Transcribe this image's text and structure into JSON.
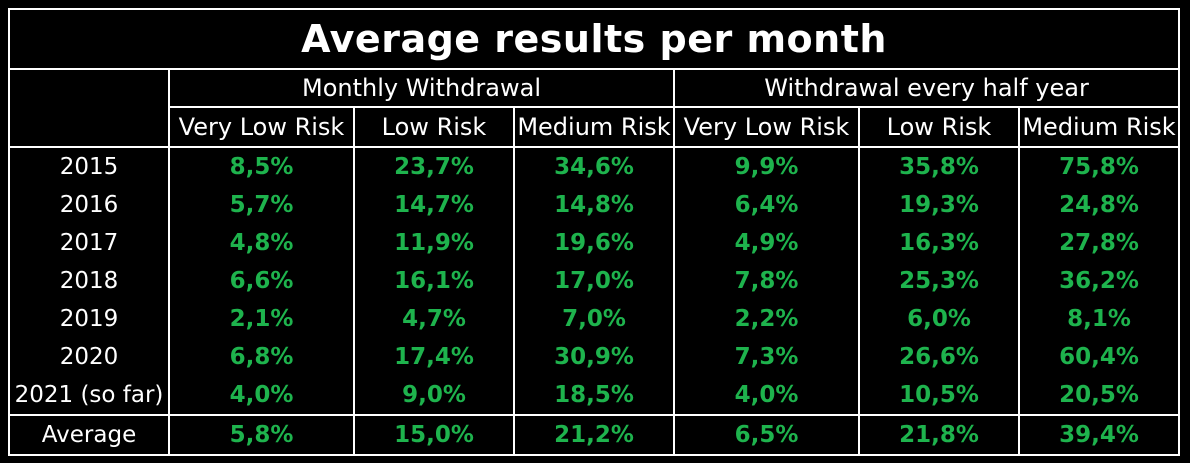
{
  "title": "Average results per month",
  "groups": [
    "Monthly Withdrawal",
    "Withdrawal every half year"
  ],
  "columns": [
    "Very Low Risk",
    "Low Risk",
    "Medium Risk",
    "Very Low Risk",
    "Low Risk",
    "Medium Risk"
  ],
  "rows": [
    {
      "label": "2015",
      "values": [
        "8,5%",
        "23,7%",
        "34,6%",
        "9,9%",
        "35,8%",
        "75,8%"
      ]
    },
    {
      "label": "2016",
      "values": [
        "5,7%",
        "14,7%",
        "14,8%",
        "6,4%",
        "19,3%",
        "24,8%"
      ]
    },
    {
      "label": "2017",
      "values": [
        "4,8%",
        "11,9%",
        "19,6%",
        "4,9%",
        "16,3%",
        "27,8%"
      ]
    },
    {
      "label": "2018",
      "values": [
        "6,6%",
        "16,1%",
        "17,0%",
        "7,8%",
        "25,3%",
        "36,2%"
      ]
    },
    {
      "label": "2019",
      "values": [
        "2,1%",
        "4,7%",
        "7,0%",
        "2,2%",
        "6,0%",
        "8,1%"
      ]
    },
    {
      "label": "2020",
      "values": [
        "6,8%",
        "17,4%",
        "30,9%",
        "7,3%",
        "26,6%",
        "60,4%"
      ]
    },
    {
      "label": "2021 (so far)",
      "values": [
        "4,0%",
        "9,0%",
        "18,5%",
        "4,0%",
        "10,5%",
        "20,5%"
      ]
    }
  ],
  "average": {
    "label": "Average",
    "values": [
      "5,8%",
      "15,0%",
      "21,2%",
      "6,5%",
      "21,8%",
      "39,4%"
    ]
  },
  "colors": {
    "background": "#000000",
    "text": "#ffffff",
    "value": "#1eb34d",
    "border": "#ffffff"
  }
}
